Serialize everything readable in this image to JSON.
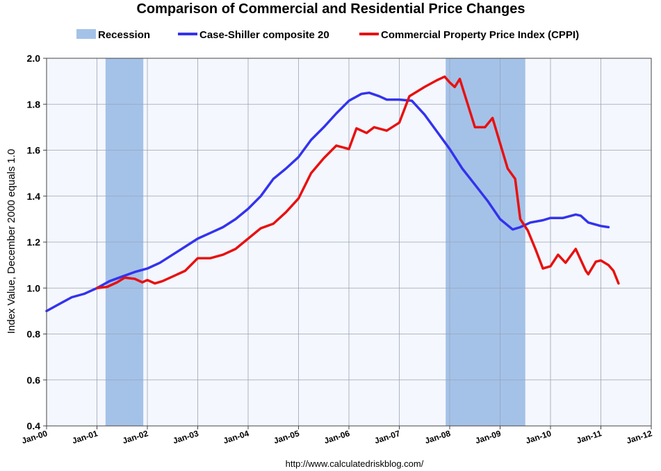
{
  "chart_data": {
    "type": "line",
    "title": "Comparison of Commercial and Residential Price Changes",
    "ylabel": "Index Value, December 2000 equals 1.0",
    "xlabel": "",
    "source_text": "http://www.calculatedriskblog.com/",
    "x_ticks": [
      "Jan-00",
      "Jan-01",
      "Jan-02",
      "Jan-03",
      "Jan-04",
      "Jan-05",
      "Jan-06",
      "Jan-07",
      "Jan-08",
      "Jan-09",
      "Jan-10",
      "Jan-11",
      "Jan-12"
    ],
    "y_ticks": [
      "0.4",
      "0.6",
      "0.8",
      "1.0",
      "1.2",
      "1.4",
      "1.6",
      "1.8",
      "2.0"
    ],
    "xlim": [
      2000.0,
      2012.0
    ],
    "ylim": [
      0.4,
      2.0
    ],
    "grid": true,
    "legend_position": "top",
    "recessions": [
      [
        2001.17,
        2001.92
      ],
      [
        2007.92,
        2009.5
      ]
    ],
    "legend": [
      {
        "label": "Recession",
        "color": "#a4c2e8",
        "kind": "box"
      },
      {
        "label": "Case-Shiller composite 20",
        "color": "#3333ee",
        "kind": "line"
      },
      {
        "label": "Commercial Property Price Index (CPPI)",
        "color": "#e81010",
        "kind": "line"
      }
    ],
    "series": [
      {
        "name": "Case-Shiller composite 20",
        "color": "#3333ee",
        "points": [
          [
            2000.0,
            0.9
          ],
          [
            2000.25,
            0.93
          ],
          [
            2000.5,
            0.96
          ],
          [
            2000.75,
            0.975
          ],
          [
            2001.0,
            1.0
          ],
          [
            2001.25,
            1.03
          ],
          [
            2001.5,
            1.05
          ],
          [
            2001.75,
            1.07
          ],
          [
            2002.0,
            1.085
          ],
          [
            2002.25,
            1.11
          ],
          [
            2002.5,
            1.145
          ],
          [
            2002.75,
            1.18
          ],
          [
            2003.0,
            1.215
          ],
          [
            2003.25,
            1.24
          ],
          [
            2003.5,
            1.265
          ],
          [
            2003.75,
            1.3
          ],
          [
            2004.0,
            1.345
          ],
          [
            2004.25,
            1.4
          ],
          [
            2004.5,
            1.475
          ],
          [
            2004.75,
            1.52
          ],
          [
            2005.0,
            1.57
          ],
          [
            2005.25,
            1.645
          ],
          [
            2005.5,
            1.7
          ],
          [
            2005.75,
            1.76
          ],
          [
            2006.0,
            1.815
          ],
          [
            2006.25,
            1.845
          ],
          [
            2006.4,
            1.85
          ],
          [
            2006.6,
            1.835
          ],
          [
            2006.75,
            1.82
          ],
          [
            2007.0,
            1.82
          ],
          [
            2007.25,
            1.815
          ],
          [
            2007.5,
            1.755
          ],
          [
            2007.75,
            1.68
          ],
          [
            2008.0,
            1.605
          ],
          [
            2008.25,
            1.52
          ],
          [
            2008.5,
            1.45
          ],
          [
            2008.75,
            1.38
          ],
          [
            2009.0,
            1.3
          ],
          [
            2009.25,
            1.255
          ],
          [
            2009.4,
            1.265
          ],
          [
            2009.6,
            1.285
          ],
          [
            2009.85,
            1.295
          ],
          [
            2010.0,
            1.305
          ],
          [
            2010.25,
            1.305
          ],
          [
            2010.5,
            1.32
          ],
          [
            2010.6,
            1.315
          ],
          [
            2010.75,
            1.285
          ],
          [
            2011.0,
            1.27
          ],
          [
            2011.15,
            1.265
          ]
        ]
      },
      {
        "name": "Commercial Property Price Index (CPPI)",
        "color": "#e81010",
        "points": [
          [
            2001.0,
            1.0
          ],
          [
            2001.2,
            1.005
          ],
          [
            2001.4,
            1.025
          ],
          [
            2001.55,
            1.045
          ],
          [
            2001.75,
            1.04
          ],
          [
            2001.9,
            1.025
          ],
          [
            2002.0,
            1.035
          ],
          [
            2002.15,
            1.02
          ],
          [
            2002.3,
            1.03
          ],
          [
            2002.5,
            1.05
          ],
          [
            2002.75,
            1.075
          ],
          [
            2003.0,
            1.13
          ],
          [
            2003.25,
            1.13
          ],
          [
            2003.5,
            1.145
          ],
          [
            2003.75,
            1.17
          ],
          [
            2004.0,
            1.215
          ],
          [
            2004.25,
            1.26
          ],
          [
            2004.5,
            1.28
          ],
          [
            2004.75,
            1.33
          ],
          [
            2005.0,
            1.39
          ],
          [
            2005.25,
            1.5
          ],
          [
            2005.5,
            1.565
          ],
          [
            2005.75,
            1.62
          ],
          [
            2006.0,
            1.605
          ],
          [
            2006.15,
            1.695
          ],
          [
            2006.35,
            1.675
          ],
          [
            2006.5,
            1.7
          ],
          [
            2006.75,
            1.685
          ],
          [
            2007.0,
            1.72
          ],
          [
            2007.2,
            1.835
          ],
          [
            2007.5,
            1.875
          ],
          [
            2007.75,
            1.905
          ],
          [
            2007.9,
            1.92
          ],
          [
            2008.0,
            1.895
          ],
          [
            2008.1,
            1.875
          ],
          [
            2008.2,
            1.91
          ],
          [
            2008.5,
            1.7
          ],
          [
            2008.7,
            1.7
          ],
          [
            2008.85,
            1.74
          ],
          [
            2009.0,
            1.63
          ],
          [
            2009.15,
            1.52
          ],
          [
            2009.3,
            1.475
          ],
          [
            2009.4,
            1.3
          ],
          [
            2009.55,
            1.25
          ],
          [
            2009.7,
            1.17
          ],
          [
            2009.85,
            1.085
          ],
          [
            2010.0,
            1.095
          ],
          [
            2010.15,
            1.145
          ],
          [
            2010.3,
            1.11
          ],
          [
            2010.5,
            1.17
          ],
          [
            2010.7,
            1.075
          ],
          [
            2010.75,
            1.06
          ],
          [
            2010.9,
            1.115
          ],
          [
            2011.0,
            1.12
          ],
          [
            2011.15,
            1.1
          ],
          [
            2011.25,
            1.075
          ],
          [
            2011.35,
            1.02
          ]
        ]
      }
    ]
  }
}
